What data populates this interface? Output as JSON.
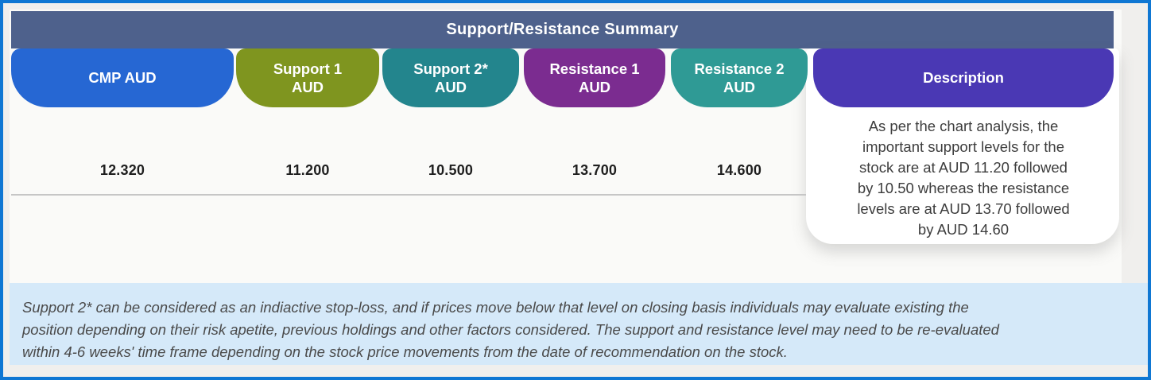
{
  "window": {
    "border_color": "#0F77D3",
    "background": "#F0EFED"
  },
  "table": {
    "title": "Support/Resistance Summary",
    "title_bar_color": "#4E618C",
    "columns": [
      {
        "id": "cmp",
        "label": "CMP AUD",
        "value": "12.320",
        "color": "#2667D3"
      },
      {
        "id": "support-1",
        "label": "Support 1\nAUD",
        "value": "11.200",
        "color": "#7F951F"
      },
      {
        "id": "support-2",
        "label": "Support 2*\nAUD",
        "value": "10.500",
        "color": "#23858D"
      },
      {
        "id": "resistance-1",
        "label": "Resistance 1\nAUD",
        "value": "13.700",
        "color": "#7B2C90"
      },
      {
        "id": "resistance-2",
        "label": "Resistance 2\nAUD",
        "value": "14.600",
        "color": "#2F9A95"
      }
    ],
    "description": {
      "label": "Description",
      "color": "#4A38B4",
      "lines": [
        "As per the chart analysis, the",
        "important support levels for the",
        "stock are at AUD 11.20 followed",
        "by 10.50 whereas the resistance",
        "levels are at AUD 13.70 followed",
        "by AUD 14.60"
      ]
    }
  },
  "footnote": {
    "background": "#D5E9F9",
    "lines": [
      "Support 2* can be considered as an indiactive stop-loss, and if prices move below that level on closing basis individuals may evaluate existing the",
      "position depending on their risk apetite, previous holdings and other factors considered. The support and resistance level may need to be re-evaluated",
      "within 4-6 weeks' time frame depending on the stock price movements from  the date of recommendation on the stock."
    ]
  }
}
